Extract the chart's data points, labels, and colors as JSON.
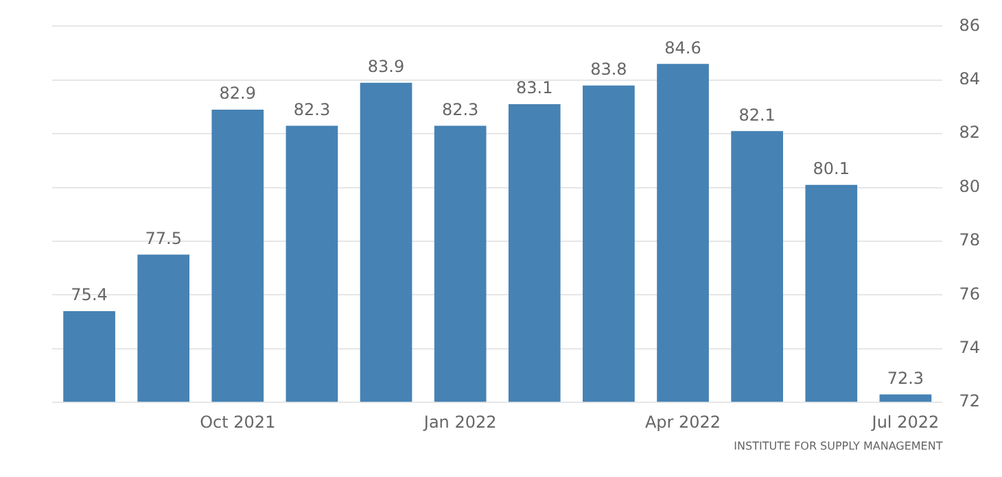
{
  "chart_data": {
    "type": "bar",
    "categories": [
      null,
      null,
      "Oct 2021",
      null,
      null,
      "Jan 2022",
      null,
      null,
      "Apr 2022",
      null,
      null,
      "Jul 2022"
    ],
    "values": [
      75.4,
      77.5,
      82.9,
      82.3,
      83.9,
      82.3,
      83.1,
      83.8,
      84.6,
      82.1,
      80.1,
      72.3
    ],
    "color": "#4682b4",
    "ylim": [
      72,
      86
    ],
    "yticks": [
      72,
      74,
      76,
      78,
      80,
      82,
      84,
      86
    ],
    "grid": "y",
    "data_labels": true,
    "legend": false,
    "annotations": [
      "INSTITUTE FOR SUPPLY MANAGEMENT"
    ]
  }
}
